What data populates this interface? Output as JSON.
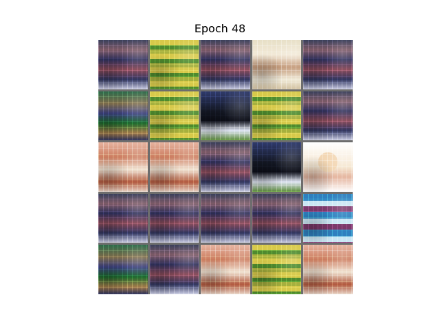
{
  "figure": {
    "title": "Epoch 48",
    "tiles": [
      "t-blue",
      "t-green",
      "t-blue",
      "t-cream",
      "t-blue",
      "t-mixed",
      "t-green",
      "t-dark",
      "t-green",
      "t-blue",
      "t-orange",
      "t-orange",
      "t-blue",
      "t-dark",
      "t-bright",
      "t-blue",
      "t-blue",
      "t-blue",
      "t-blue",
      "t-aqua",
      "t-mixed",
      "t-blue",
      "t-orange",
      "t-green",
      "t-orange"
    ]
  }
}
